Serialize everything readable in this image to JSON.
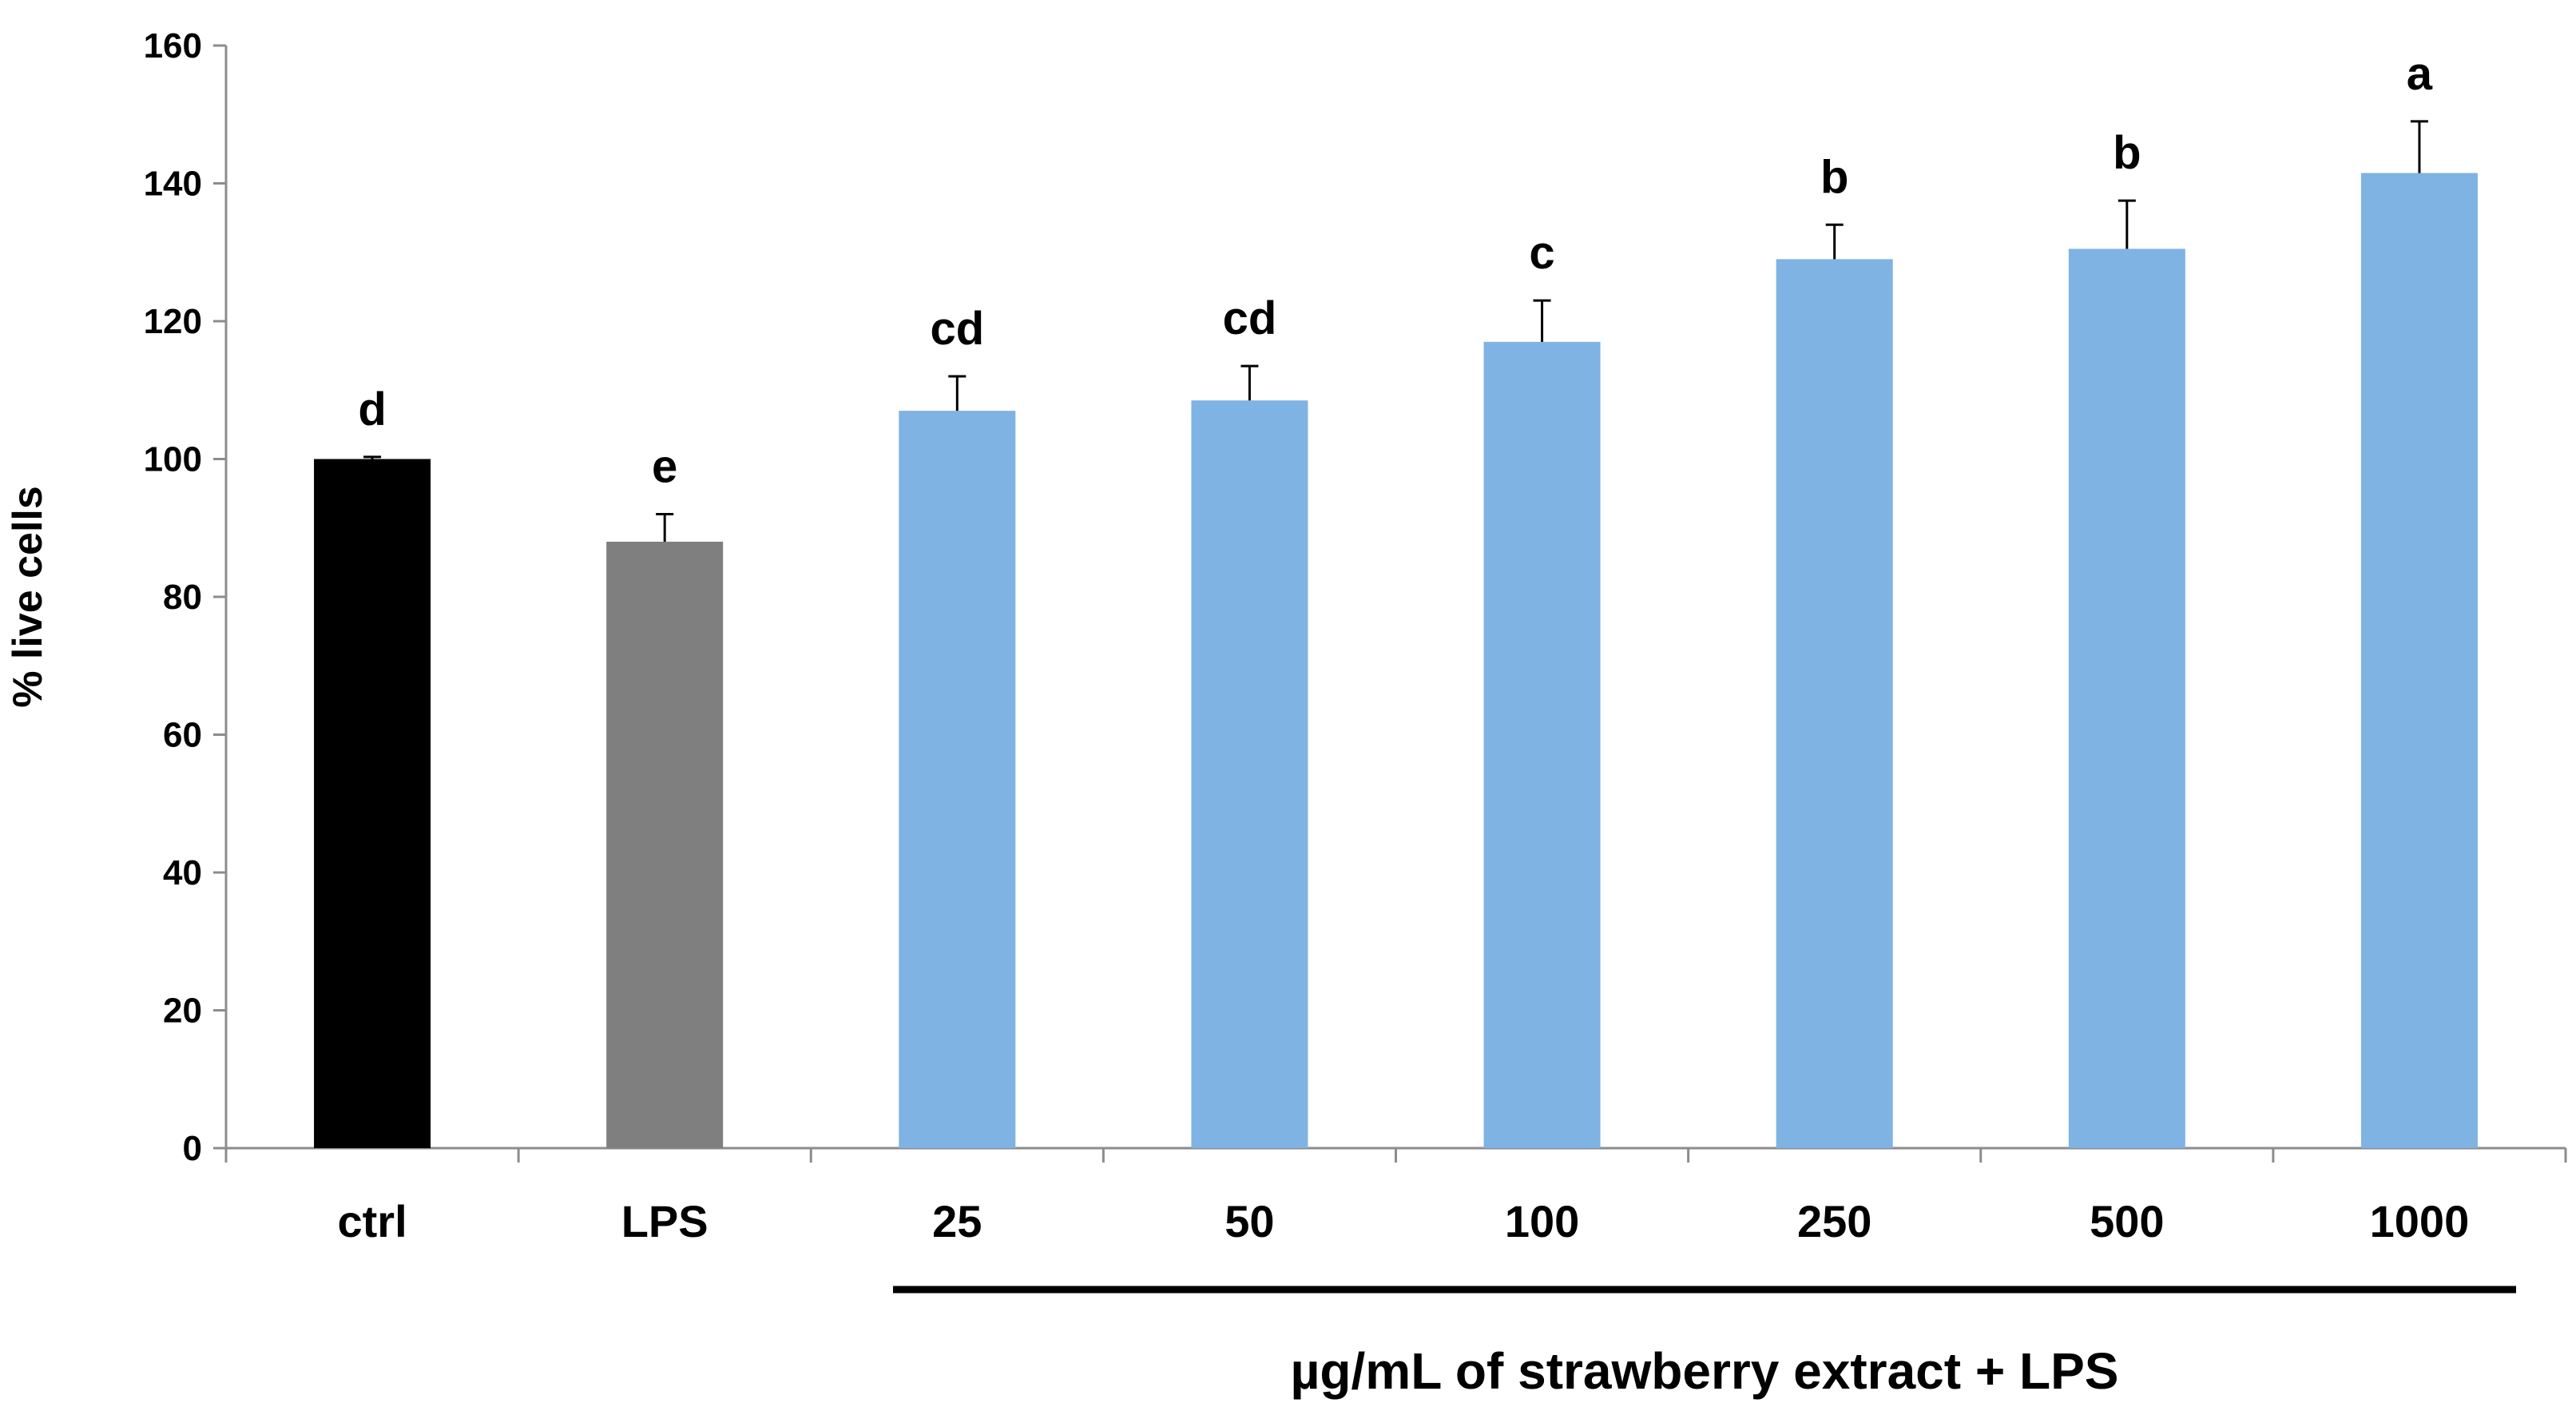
{
  "chart_data": {
    "type": "bar",
    "title": "",
    "xlabel": "",
    "ylabel": "% live cells",
    "ylim": [
      0,
      160
    ],
    "yticks": [
      0,
      20,
      40,
      60,
      80,
      100,
      120,
      140,
      160
    ],
    "categories": [
      "ctrl",
      "LPS",
      "25",
      "50",
      "100",
      "250",
      "500",
      "1000"
    ],
    "values": [
      100,
      88,
      107,
      108.5,
      117,
      129,
      130.5,
      141.5
    ],
    "errors": [
      0.3,
      4,
      5,
      5,
      6,
      5,
      7,
      7.5
    ],
    "significance": [
      "d",
      "e",
      "cd",
      "cd",
      "c",
      "b",
      "b",
      "a"
    ],
    "colors": [
      "#000000",
      "#7f7f7f",
      "#7eb3e3",
      "#7eb3e3",
      "#7eb3e3",
      "#7eb3e3",
      "#7eb3e3",
      "#7eb3e3"
    ],
    "group_label": "µg/mL of strawberry extract + LPS",
    "grid": false
  }
}
